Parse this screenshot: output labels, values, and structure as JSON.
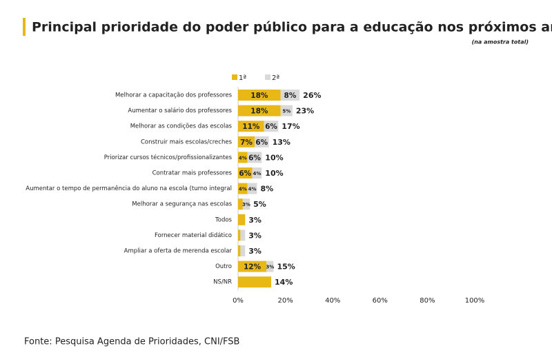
{
  "chart_data": {
    "type": "stacked-bar-horizontal",
    "title": "Principal prioridade do poder público para a educação nos próximos anos",
    "subtitle": "(na amostra total)",
    "source": "Fonte: Pesquisa Agenda de Prioridades, CNI/FSB",
    "categories": [
      "Melhorar a capacitação dos professores",
      "Aumentar o salário dos professores",
      "Melhorar as condições das escolas",
      "Construir mais escolas/creches",
      "Priorizar cursos técnicos/profissionalizantes",
      "Contratar mais professores",
      "Aumentar o tempo de permanência do aluno na escola (turno integral",
      "Melhorar a segurança nas escolas",
      "Todos",
      "Fornecer material didático",
      "Ampliar a oferta de merenda escolar",
      "Outro",
      "NS/NR"
    ],
    "series": [
      {
        "name": "1ª",
        "color": "#e8b817",
        "values": [
          18,
          18,
          11,
          7,
          4,
          6,
          4,
          2,
          3,
          1,
          1,
          12,
          14
        ],
        "value_labels": [
          "18%",
          "18%",
          "11%",
          "7%",
          "4%",
          "6%",
          "4%",
          null,
          null,
          null,
          null,
          "12%",
          null
        ]
      },
      {
        "name": "2ª",
        "color": "#d9d9d9",
        "values": [
          8,
          5,
          6,
          6,
          6,
          4,
          4,
          3,
          null,
          2,
          2,
          3,
          null
        ],
        "value_labels": [
          "8%",
          "5%",
          "6%",
          "6%",
          "6%",
          "4%",
          "4%",
          "3%",
          null,
          null,
          null,
          "3%",
          null
        ]
      }
    ],
    "totals": [
      26,
      23,
      17,
      13,
      10,
      10,
      8,
      5,
      3,
      3,
      3,
      15,
      14
    ],
    "total_labels": [
      "26%",
      "23%",
      "17%",
      "13%",
      "10%",
      "10%",
      "8%",
      "5%",
      "3%",
      "3%",
      "3%",
      "15%",
      "14%"
    ],
    "xlim": [
      0,
      100
    ],
    "xticks": [
      {
        "value": 0,
        "label": "0%"
      },
      {
        "value": 20,
        "label": "20%"
      },
      {
        "value": 40,
        "label": "40%"
      },
      {
        "value": 60,
        "label": "60%"
      },
      {
        "value": 80,
        "label": "80%"
      },
      {
        "value": 100,
        "label": "100%"
      }
    ]
  }
}
